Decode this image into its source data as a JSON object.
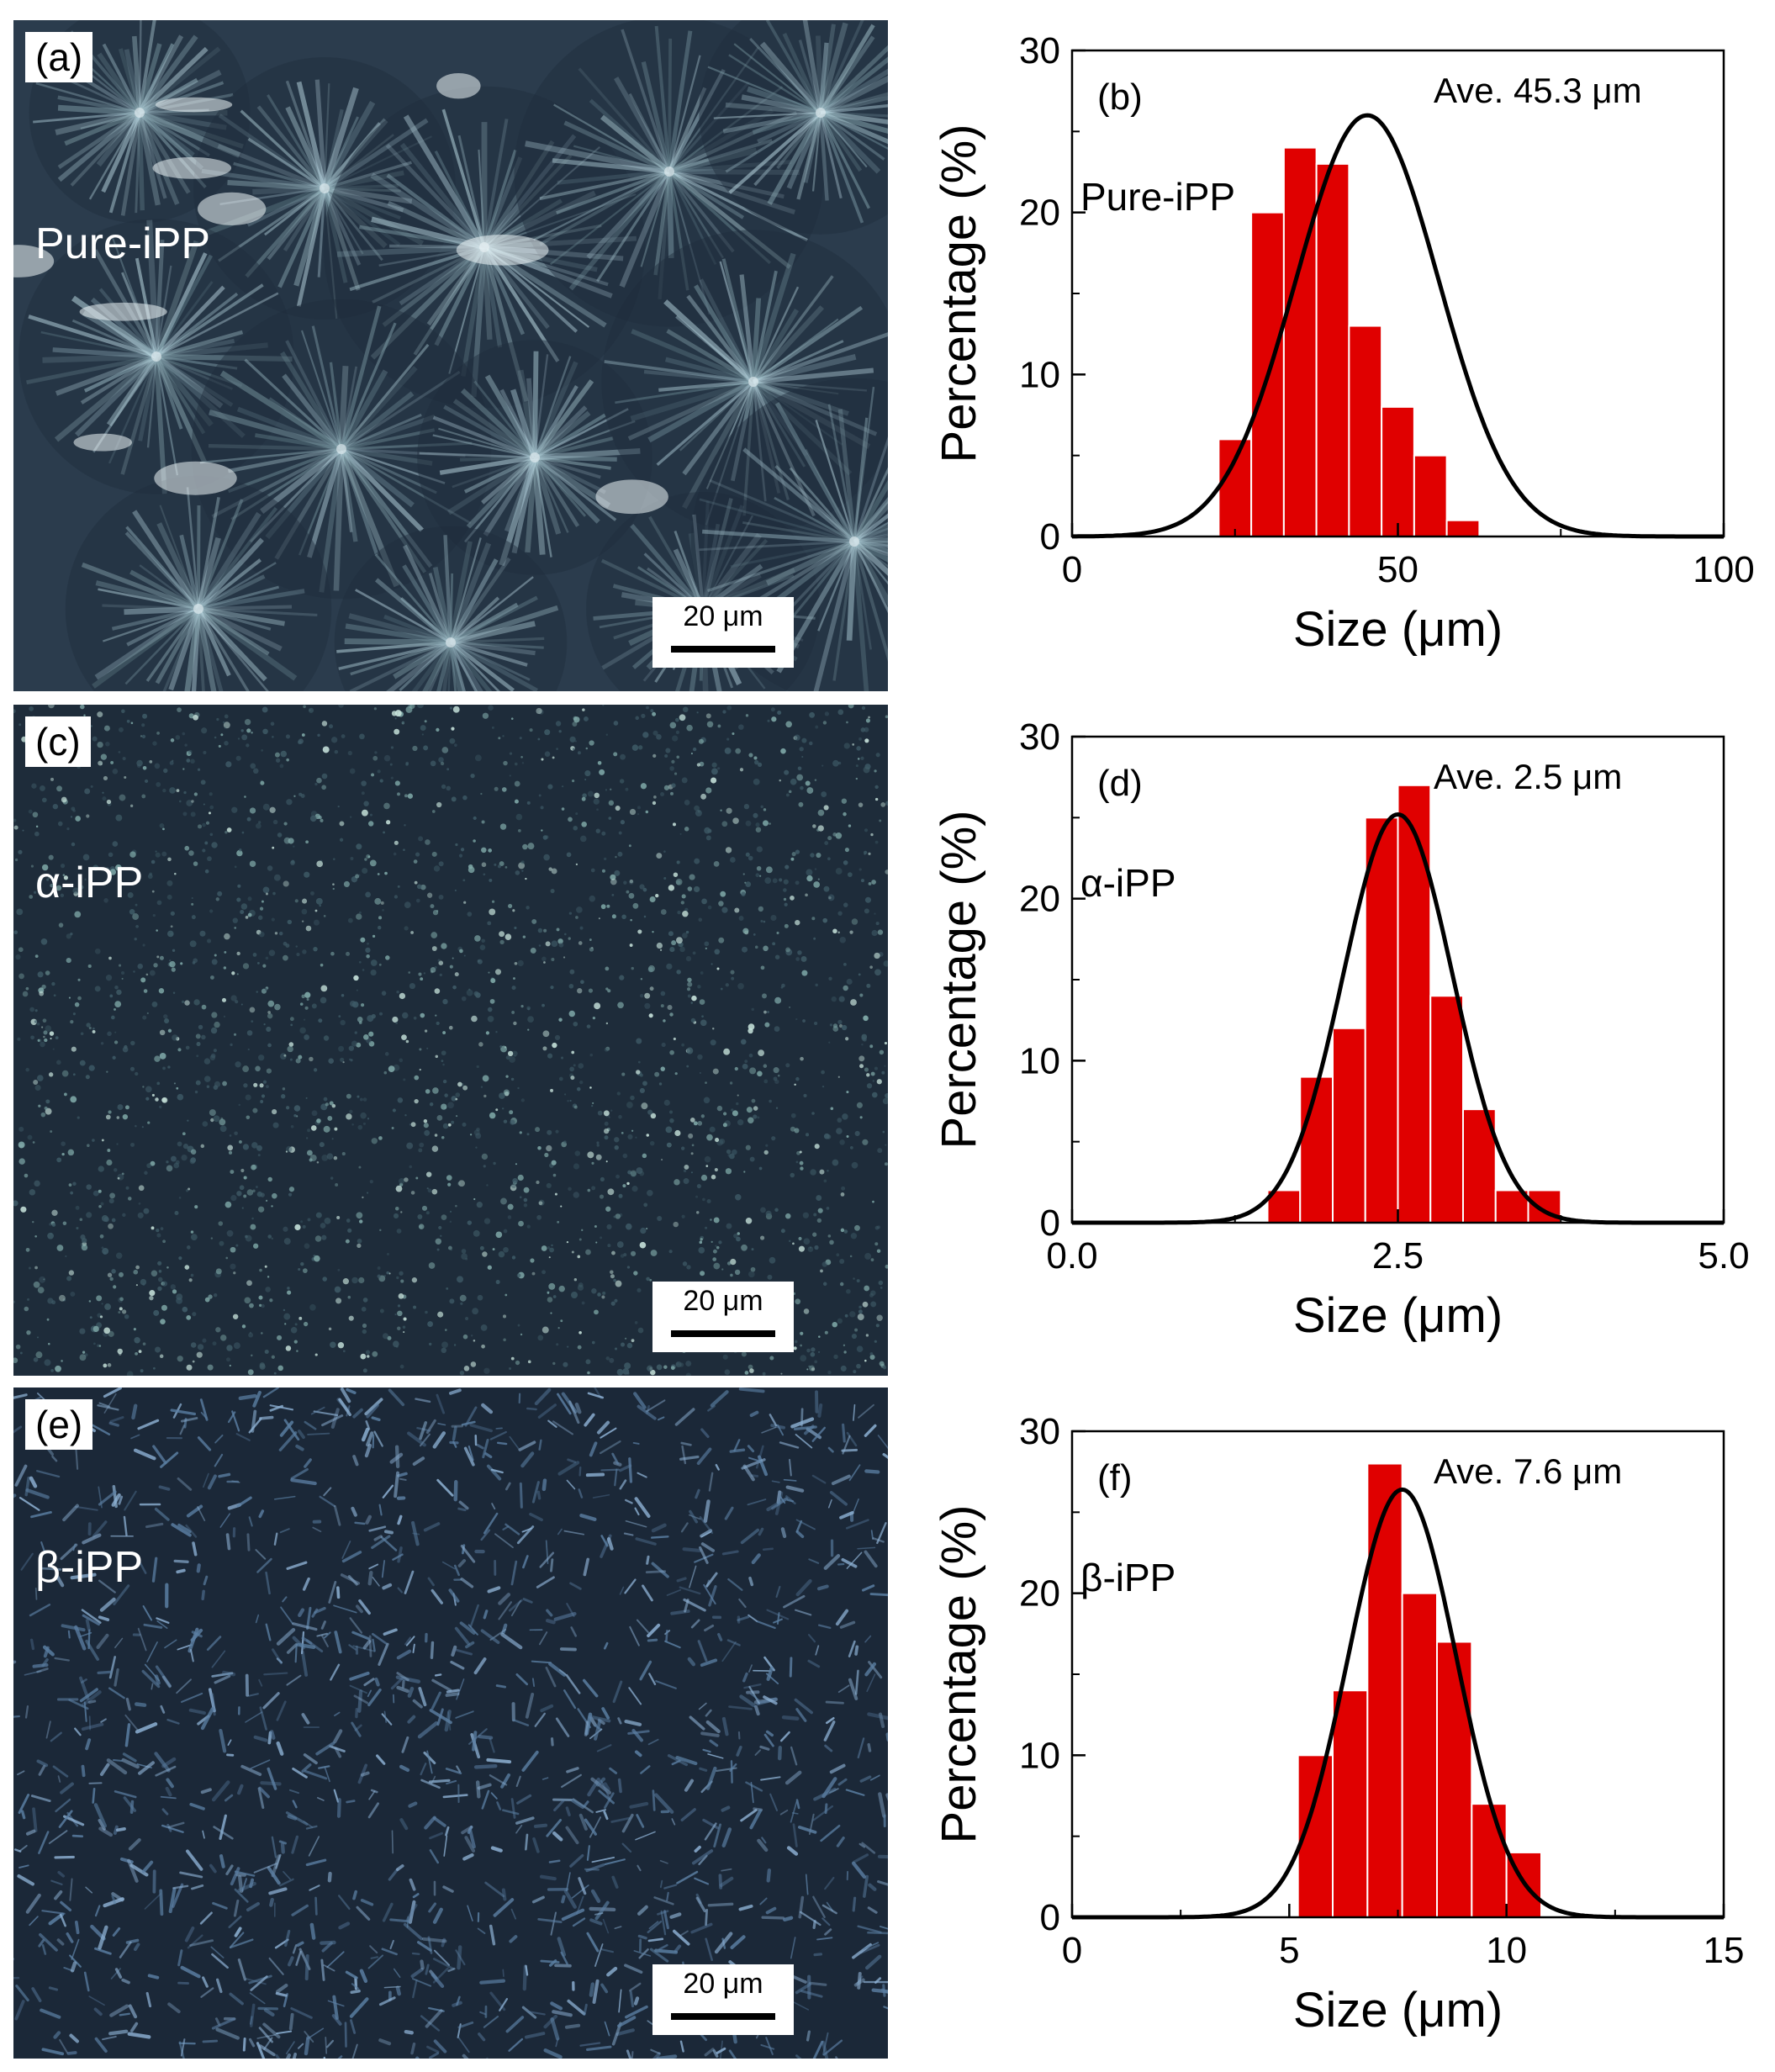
{
  "panels": [
    {
      "micrograph": {
        "label": "(a)",
        "sample": "Pure-iPP",
        "scale_bar": "20 μm",
        "texture": "spherulites",
        "base_color": "#2b3c4d"
      },
      "chart_data": {
        "type": "bar",
        "panel_label": "(b)",
        "annotation": "Ave. 45.3 μm",
        "series_label": "Pure-iPP",
        "xlabel": "Size (μm)",
        "ylabel": "Percentage (%)",
        "xlim": [
          0,
          100
        ],
        "ylim": [
          0,
          30
        ],
        "xticks": [
          "0",
          "50",
          "100"
        ],
        "yticks": [
          "0",
          "10",
          "20",
          "30"
        ],
        "bin_width": 5,
        "bins": [
          {
            "x": 25,
            "value": 6
          },
          {
            "x": 30,
            "value": 20
          },
          {
            "x": 35,
            "value": 24
          },
          {
            "x": 40,
            "value": 23
          },
          {
            "x": 45,
            "value": 13
          },
          {
            "x": 50,
            "value": 8
          },
          {
            "x": 55,
            "value": 5
          },
          {
            "x": 60,
            "value": 1
          }
        ],
        "fit": {
          "mean": 45.3,
          "sigma": 11,
          "peak": 26
        },
        "bar_color": "#e00000"
      }
    },
    {
      "micrograph": {
        "label": "(c)",
        "sample": "α-iPP",
        "scale_bar": "20 μm",
        "texture": "speckle",
        "base_color": "#1e2c3a"
      },
      "chart_data": {
        "type": "bar",
        "panel_label": "(d)",
        "annotation": "Ave. 2.5 μm",
        "series_label": "α-iPP",
        "xlabel": "Size (μm)",
        "ylabel": "Percentage (%)",
        "xlim": [
          0,
          5
        ],
        "ylim": [
          0,
          30
        ],
        "xticks": [
          "0.0",
          "2.5",
          "5.0"
        ],
        "yticks": [
          "0",
          "10",
          "20",
          "30"
        ],
        "bin_width": 0.25,
        "bins": [
          {
            "x": 1.625,
            "value": 2
          },
          {
            "x": 1.875,
            "value": 9
          },
          {
            "x": 2.125,
            "value": 12
          },
          {
            "x": 2.375,
            "value": 25
          },
          {
            "x": 2.625,
            "value": 27
          },
          {
            "x": 2.875,
            "value": 14
          },
          {
            "x": 3.125,
            "value": 7
          },
          {
            "x": 3.375,
            "value": 2
          },
          {
            "x": 3.625,
            "value": 2
          }
        ],
        "fit": {
          "mean": 2.5,
          "sigma": 0.42,
          "peak": 25.2
        },
        "bar_color": "#e00000"
      }
    },
    {
      "micrograph": {
        "label": "(e)",
        "sample": "β-iPP",
        "scale_bar": "20 μm",
        "texture": "needles",
        "base_color": "#1b2838"
      },
      "chart_data": {
        "type": "bar",
        "panel_label": "(f)",
        "annotation": "Ave. 7.6 μm",
        "series_label": "β-iPP",
        "xlabel": "Size (μm)",
        "ylabel": "Percentage (%)",
        "xlim": [
          0,
          15
        ],
        "ylim": [
          0,
          30
        ],
        "xticks": [
          "0",
          "5",
          "10",
          "15"
        ],
        "yticks": [
          "0",
          "10",
          "20",
          "30"
        ],
        "bin_width": 0.8,
        "bins": [
          {
            "x": 5.6,
            "value": 10
          },
          {
            "x": 6.4,
            "value": 14
          },
          {
            "x": 7.2,
            "value": 28
          },
          {
            "x": 8.0,
            "value": 20
          },
          {
            "x": 8.8,
            "value": 17
          },
          {
            "x": 9.6,
            "value": 7
          },
          {
            "x": 10.4,
            "value": 4
          }
        ],
        "fit": {
          "mean": 7.6,
          "sigma": 1.25,
          "peak": 26.4
        },
        "bar_color": "#e00000"
      }
    }
  ]
}
